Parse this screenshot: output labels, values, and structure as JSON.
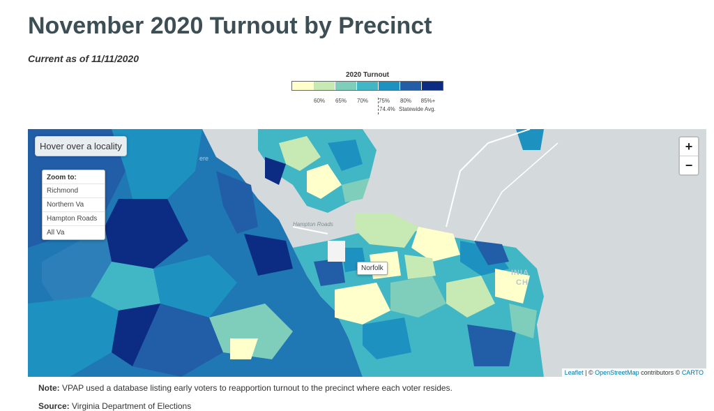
{
  "page": {
    "title": "November 2020 Turnout by Precinct",
    "subtitle": "Current as of 11/11/2020"
  },
  "legend": {
    "title": "2020 Turnout",
    "colors": [
      "#ffffcc",
      "#c7e9b4",
      "#7fcdbb",
      "#41b6c4",
      "#1d91c0",
      "#225ea8",
      "#0c2c84"
    ],
    "ticks": [
      "60%",
      "65%",
      "70%",
      "75%",
      "80%",
      "85%+"
    ],
    "statewide_value": "74.4%",
    "statewide_label": "Statewide Avg."
  },
  "map": {
    "hover_prompt": "Hover over a locality",
    "zoom_title": "Zoom to:",
    "zoom_options": [
      "Richmond",
      "Northern Va",
      "Hampton Roads",
      "All Va"
    ],
    "zoom_in": "+",
    "zoom_out": "−",
    "city_label": "Norfolk",
    "water_label": "Hampton Roads",
    "place_labels": [
      "ere",
      "INIA",
      "CH"
    ],
    "attribution": {
      "leaflet": "Leaflet",
      "separator": " | © ",
      "osm": "OpenStreetMap",
      "contributors": " contributors © ",
      "carto": "CARTO"
    }
  },
  "footer": {
    "note_label": "Note:",
    "note_text": " VPAP used a database listing early voters to reapportion turnout to the precinct where each voter resides.",
    "source_label": "Source:",
    "source_text": " Virginia Department of Elections"
  }
}
